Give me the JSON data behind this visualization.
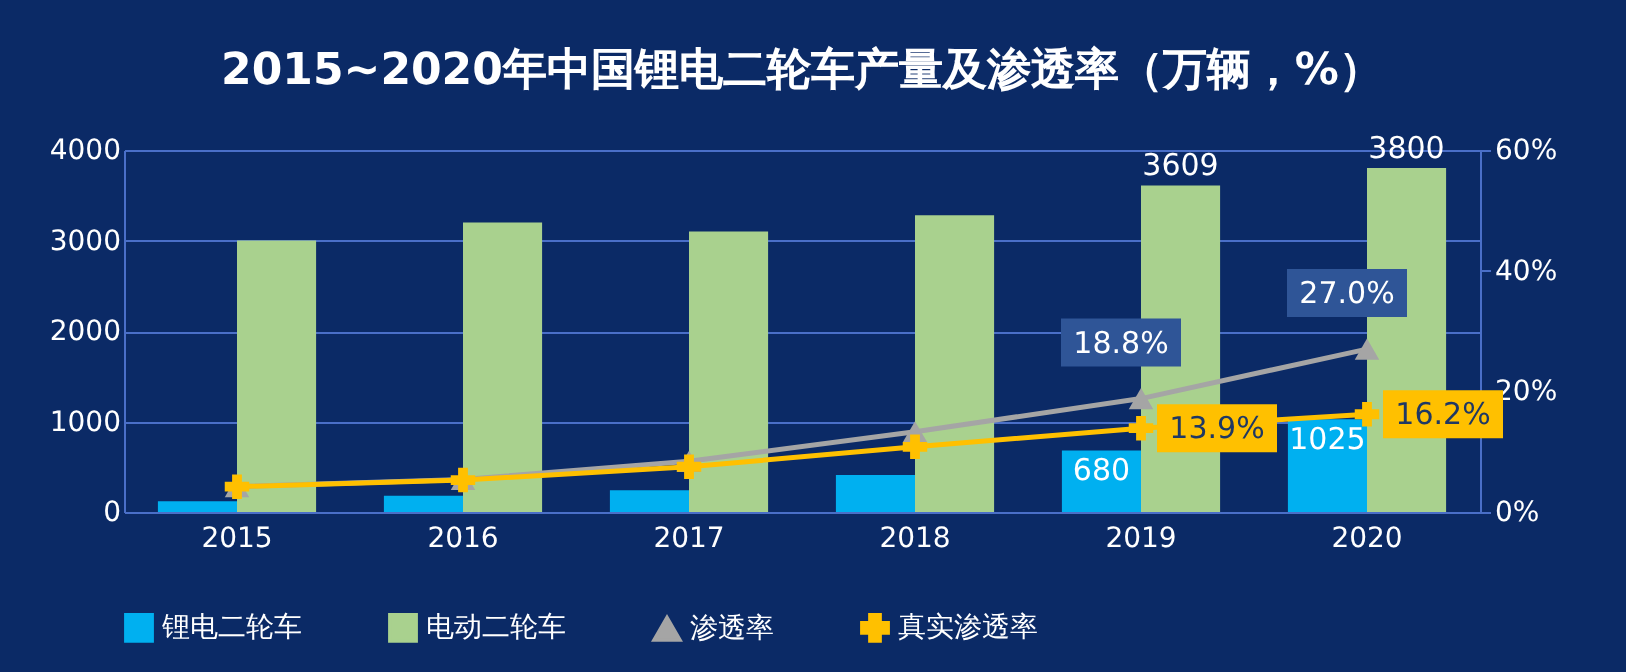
{
  "chart_data": {
    "type": "bar",
    "title": "2015~2020年中国锂电二轮车产量及渗透率（万辆，%）",
    "categories": [
      "2015",
      "2016",
      "2017",
      "2018",
      "2019",
      "2020"
    ],
    "series": [
      {
        "name": "锂电二轮车",
        "color": "#00b0f0",
        "values": [
          120,
          180,
          240,
          410,
          680,
          1025
        ],
        "value_labels": [
          null,
          null,
          null,
          null,
          "680",
          "1025"
        ]
      },
      {
        "name": "电动二轮车",
        "color": "#a9d18e",
        "values": [
          3000,
          3200,
          3100,
          3280,
          3609,
          3800
        ],
        "value_labels": [
          null,
          null,
          null,
          null,
          "3609",
          "3800"
        ]
      },
      {
        "name": "渗透率",
        "type": "line",
        "axis": "y2",
        "marker": "triangle",
        "color": "#a5a5a5",
        "values": [
          4.2,
          5.4,
          8.4,
          13.3,
          18.8,
          27.0
        ],
        "value_labels": [
          null,
          null,
          null,
          null,
          "18.8%",
          "27.0%"
        ]
      },
      {
        "name": "真实渗透率",
        "type": "line",
        "axis": "y2",
        "marker": "cross",
        "color": "#ffc000",
        "values": [
          4.2,
          5.3,
          7.5,
          10.8,
          13.9,
          16.2
        ],
        "value_labels": [
          null,
          null,
          null,
          null,
          "13.9%",
          "16.2%"
        ]
      }
    ],
    "ylim": [
      0,
      4000
    ],
    "yticks": [
      0,
      1000,
      2000,
      3000,
      4000
    ],
    "y2lim": [
      0,
      60
    ],
    "y2ticks": [
      {
        "value": 0,
        "label": "0%"
      },
      {
        "value": 20,
        "label": "20%"
      },
      {
        "value": 40,
        "label": "40%"
      },
      {
        "value": 60,
        "label": "60%"
      }
    ],
    "grid": "y",
    "legend": "bottom"
  }
}
